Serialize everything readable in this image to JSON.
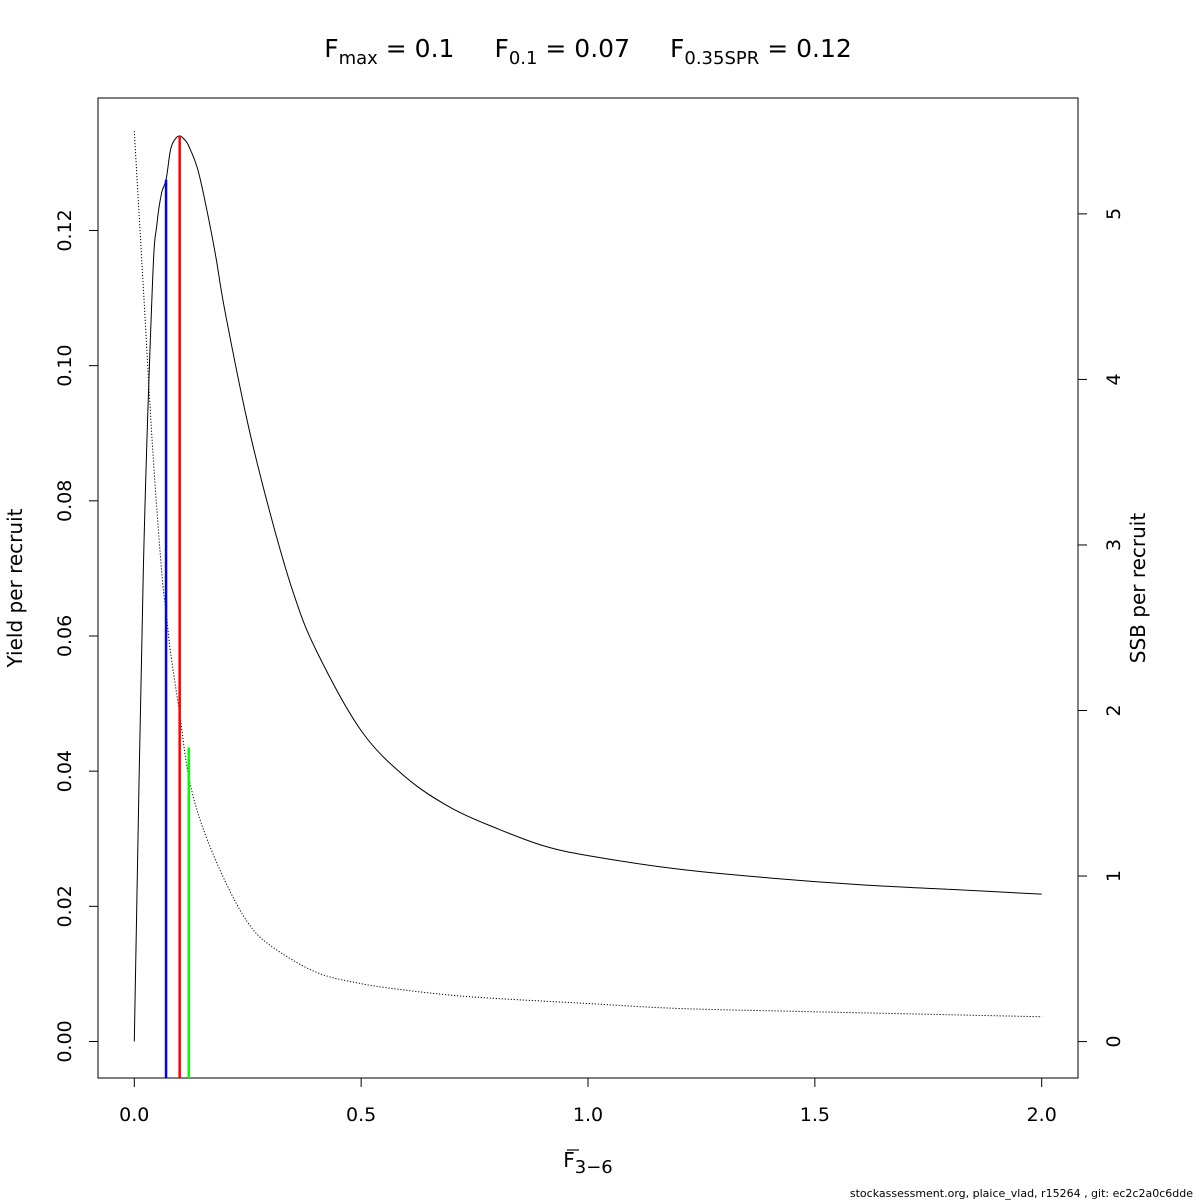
{
  "chart_data": {
    "type": "line",
    "title": {
      "fmax": {
        "main": "F",
        "sub": "max",
        "rest": " = 0.1"
      },
      "f01": {
        "main": "F",
        "sub": "0.1",
        "rest": " = 0.07"
      },
      "f35": {
        "main": "F",
        "sub": "0.35SPR",
        "rest": " = 0.12"
      }
    },
    "xlabel": {
      "main": "F",
      "sub": "3−6"
    },
    "ylabel_left": "Yield per recruit",
    "ylabel_right": "SSB per recruit",
    "xlim": [
      -0.08,
      2.08
    ],
    "ylim_left": [
      -0.0054,
      0.1396
    ],
    "ylim_right": [
      -0.22,
      5.7
    ],
    "x_ticks": [
      "0.0",
      "0.5",
      "1.0",
      "1.5",
      "2.0"
    ],
    "x_tick_values": [
      0.0,
      0.5,
      1.0,
      1.5,
      2.0
    ],
    "y_left_ticks": [
      "0.00",
      "0.02",
      "0.04",
      "0.06",
      "0.08",
      "0.10",
      "0.12"
    ],
    "y_left_tick_values": [
      0.0,
      0.02,
      0.04,
      0.06,
      0.08,
      0.1,
      0.12
    ],
    "y_right_ticks": [
      "0",
      "1",
      "2",
      "3",
      "4",
      "5"
    ],
    "y_right_tick_values": [
      0,
      1,
      2,
      3,
      4,
      5
    ],
    "series": [
      {
        "style": "solid",
        "color": "#000000",
        "axis": "left",
        "x": [
          0.0,
          0.02,
          0.04,
          0.05,
          0.06,
          0.07,
          0.08,
          0.09,
          0.1,
          0.11,
          0.12,
          0.14,
          0.16,
          0.18,
          0.2,
          0.25,
          0.3,
          0.35,
          0.4,
          0.5,
          0.6,
          0.7,
          0.8,
          0.9,
          1.0,
          1.2,
          1.4,
          1.6,
          1.8,
          2.0
        ],
        "y": [
          0.0,
          0.07,
          0.112,
          0.121,
          0.1255,
          0.1275,
          0.132,
          0.1335,
          0.134,
          0.1335,
          0.1325,
          0.129,
          0.123,
          0.116,
          0.108,
          0.0915,
          0.078,
          0.0665,
          0.058,
          0.046,
          0.039,
          0.0345,
          0.0315,
          0.029,
          0.0275,
          0.0255,
          0.0242,
          0.0232,
          0.0225,
          0.0218
        ]
      },
      {
        "style": "dotted",
        "color": "#000000",
        "axis": "right",
        "x": [
          0.0,
          0.02,
          0.04,
          0.06,
          0.07,
          0.08,
          0.1,
          0.12,
          0.15,
          0.2,
          0.25,
          0.3,
          0.4,
          0.5,
          0.6,
          0.7,
          0.8,
          1.0,
          1.2,
          1.5,
          2.0
        ],
        "y": [
          5.5,
          4.55,
          3.6,
          2.85,
          2.6,
          2.35,
          1.98,
          1.6,
          1.3,
          0.97,
          0.72,
          0.58,
          0.42,
          0.35,
          0.31,
          0.28,
          0.26,
          0.23,
          0.2,
          0.18,
          0.15
        ]
      }
    ],
    "reference_lines": [
      {
        "label": "F0.1",
        "x": 0.07,
        "y_top": 0.1275,
        "color": "#0000ff"
      },
      {
        "label": "Fmax",
        "x": 0.1,
        "y_top": 0.134,
        "color": "#ff0000"
      },
      {
        "label": "F0.35SPR",
        "x": 0.12,
        "y_top": 0.0435,
        "color": "#00ff00"
      }
    ],
    "grid": false,
    "legend": "none"
  },
  "footer": "stockassessment.org, plaice_vlad, r15264 , git: ec2c2a0c6dde"
}
